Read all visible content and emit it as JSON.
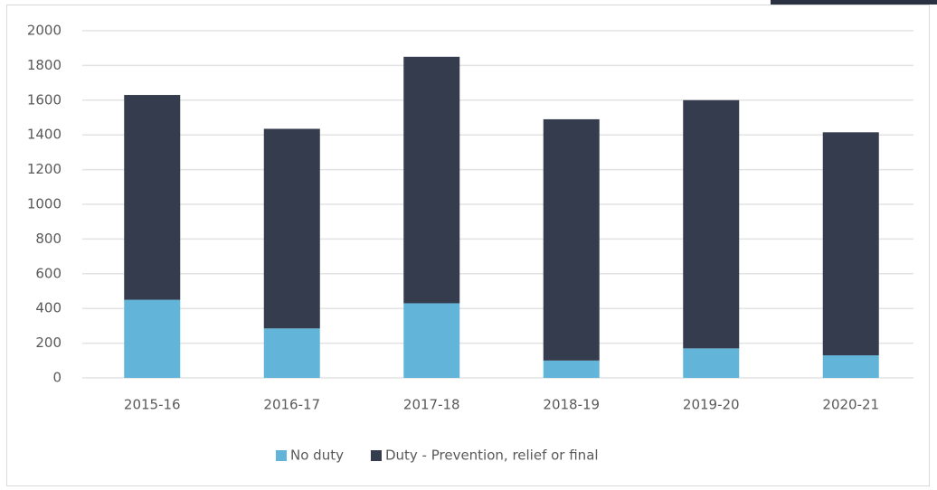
{
  "chart_data": {
    "type": "stacked_bar",
    "categories": [
      "2015-16",
      "2016-17",
      "2017-18",
      "2018-19",
      "2019-20",
      "2020-21"
    ],
    "series": [
      {
        "name": "No duty",
        "color": "#62b5d9",
        "values": [
          450,
          285,
          430,
          100,
          170,
          130
        ]
      },
      {
        "name": "Duty - Prevention, relief or final",
        "color": "#353c4e",
        "values": [
          1180,
          1150,
          1420,
          1390,
          1430,
          1285
        ]
      }
    ],
    "ylim": [
      0,
      2000
    ],
    "yticks": [
      0,
      200,
      400,
      600,
      800,
      1000,
      1200,
      1400,
      1600,
      1800,
      2000
    ],
    "grid": true,
    "legend": "bottom"
  }
}
